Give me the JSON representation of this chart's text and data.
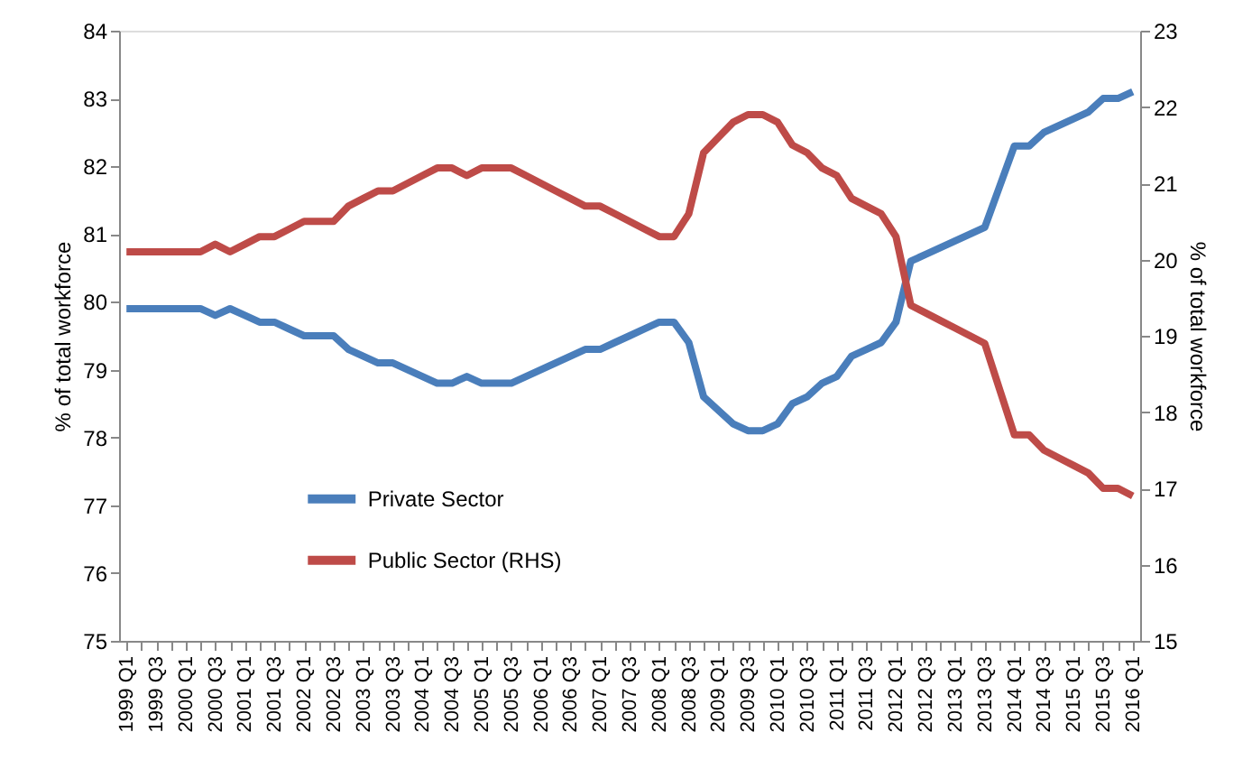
{
  "chart_data": {
    "type": "line",
    "xlabel": null,
    "ylabel": "% of total workforce",
    "y2label": "% of total workforce",
    "categories": [
      "1999 Q1",
      null,
      "1999 Q3",
      null,
      "2000 Q1",
      null,
      "2000 Q3",
      null,
      "2001 Q1",
      null,
      "2001 Q3",
      null,
      "2002 Q1",
      null,
      "2002 Q3",
      null,
      "2003 Q1",
      null,
      "2003 Q3",
      null,
      "2004 Q1",
      null,
      "2004 Q3",
      null,
      "2005 Q1",
      null,
      "2005 Q3",
      null,
      "2006 Q1",
      null,
      "2006 Q3",
      null,
      "2007 Q1",
      null,
      "2007 Q3",
      null,
      "2008 Q1",
      null,
      "2008 Q3",
      null,
      "2009 Q1",
      null,
      "2009 Q3",
      null,
      "2010 Q1",
      null,
      "2010 Q3",
      null,
      "2011 Q1",
      null,
      "2011 Q3",
      null,
      "2012 Q1",
      null,
      "2012 Q3",
      null,
      "2013 Q1",
      null,
      "2013 Q3",
      null,
      "2014 Q1",
      null,
      "2014 Q3",
      null,
      "2015 Q1",
      null,
      "2015 Q3",
      null,
      "2016 Q1"
    ],
    "series": [
      {
        "name": "Private Sector",
        "color": "#4a7ebb",
        "values": [
          79.9,
          79.9,
          79.9,
          79.9,
          79.9,
          79.9,
          79.8,
          79.9,
          79.8,
          79.7,
          79.7,
          79.6,
          79.5,
          79.5,
          79.5,
          79.3,
          79.2,
          79.1,
          79.1,
          79.0,
          78.9,
          78.8,
          78.8,
          78.9,
          78.8,
          78.8,
          78.8,
          78.9,
          79.0,
          79.1,
          79.2,
          79.3,
          79.3,
          79.4,
          79.5,
          79.6,
          79.7,
          79.7,
          79.4,
          78.6,
          78.4,
          78.2,
          78.1,
          78.1,
          78.2,
          78.5,
          78.6,
          78.8,
          78.9,
          79.2,
          79.3,
          79.4,
          79.7,
          80.6,
          80.7,
          80.8,
          80.9,
          81.0,
          81.1,
          81.7,
          82.3,
          82.3,
          82.5,
          82.6,
          82.7,
          82.8,
          83.0,
          83.0,
          83.1
        ]
      },
      {
        "name": "Public Sector (RHS)",
        "color": "#be4b48",
        "axis": "y2",
        "values": [
          20.1,
          20.1,
          20.1,
          20.1,
          20.1,
          20.1,
          20.2,
          20.1,
          20.2,
          20.3,
          20.3,
          20.4,
          20.5,
          20.5,
          20.5,
          20.7,
          20.8,
          20.9,
          20.9,
          21.0,
          21.1,
          21.2,
          21.2,
          21.1,
          21.2,
          21.2,
          21.2,
          21.1,
          21.0,
          20.9,
          20.8,
          20.7,
          20.7,
          20.6,
          20.5,
          20.4,
          20.3,
          20.3,
          20.6,
          21.4,
          21.6,
          21.8,
          21.9,
          21.9,
          21.8,
          21.5,
          21.4,
          21.2,
          21.1,
          20.8,
          20.7,
          20.6,
          20.3,
          19.4,
          19.3,
          19.2,
          19.1,
          19.0,
          18.9,
          18.3,
          17.7,
          17.7,
          17.5,
          17.4,
          17.3,
          17.2,
          17.0,
          17.0,
          16.9
        ]
      }
    ],
    "ylim": [
      75,
      84
    ],
    "yticks": [
      75,
      76,
      77,
      78,
      79,
      80,
      81,
      82,
      83,
      84
    ],
    "y2lim": [
      15,
      23
    ],
    "y2ticks": [
      15,
      16,
      17,
      18,
      19,
      20,
      21,
      22,
      23
    ],
    "grid": false,
    "legend": "bottom left",
    "marker": "none",
    "line_style": "solid"
  }
}
